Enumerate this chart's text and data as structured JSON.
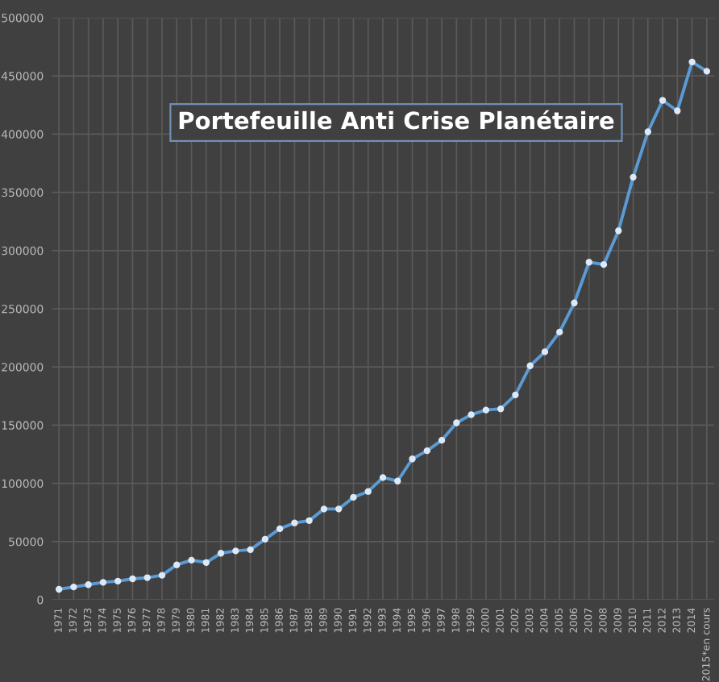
{
  "chart_data": {
    "type": "line",
    "title": "Portefeuille Anti Crise Planétaire",
    "categories": [
      "1971",
      "1972",
      "1973",
      "1974",
      "1975",
      "1976",
      "1977",
      "1978",
      "1979",
      "1980",
      "1981",
      "1982",
      "1983",
      "1984",
      "1985",
      "1986",
      "1987",
      "1988",
      "1989",
      "1990",
      "1991",
      "1992",
      "1993",
      "1994",
      "1995",
      "1996",
      "1997",
      "1998",
      "1999",
      "2000",
      "2001",
      "2002",
      "2003",
      "2004",
      "2005",
      "2006",
      "2007",
      "2008",
      "2009",
      "2010",
      "2011",
      "2012",
      "2013",
      "2014",
      "2015*en cours"
    ],
    "series": [
      {
        "color": "#5b9bd5",
        "values": [
          9000,
          11000,
          13000,
          15000,
          16000,
          18000,
          19000,
          21000,
          30000,
          34000,
          32000,
          40000,
          42000,
          43000,
          52000,
          61000,
          66000,
          68000,
          78000,
          78000,
          88000,
          93000,
          105000,
          102000,
          121000,
          128000,
          137000,
          152000,
          159000,
          163000,
          164000,
          176000,
          201000,
          213000,
          230000,
          255000,
          290000,
          288000,
          317000,
          363000,
          402000,
          429000,
          420000,
          462000,
          454000
        ]
      }
    ],
    "ylim": [
      0,
      500000
    ],
    "yticks": [
      0,
      50000,
      100000,
      150000,
      200000,
      250000,
      300000,
      350000,
      400000,
      450000,
      500000
    ],
    "grid": true,
    "marker": "circle",
    "line_style": "solid",
    "legend": false
  }
}
